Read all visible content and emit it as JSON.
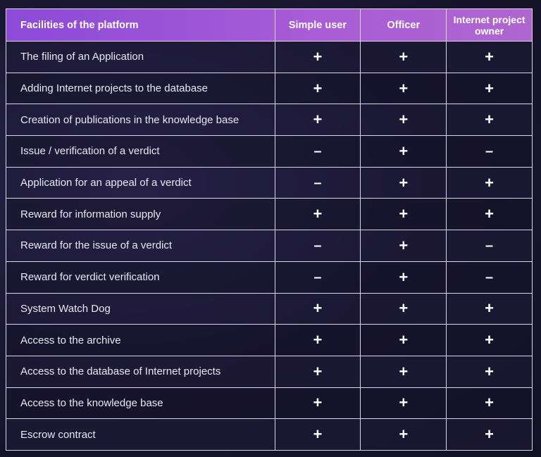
{
  "table": {
    "headers": [
      "Facilities of the platform",
      "Simple user",
      "Officer",
      "Internet project owner"
    ],
    "rows": [
      {
        "feature": "The filing of an Application",
        "values": [
          "+",
          "+",
          "+"
        ]
      },
      {
        "feature": "Adding Internet projects to the database",
        "values": [
          "+",
          "+",
          "+"
        ]
      },
      {
        "feature": "Creation of publications in the knowledge base",
        "values": [
          "+",
          "+",
          "+"
        ]
      },
      {
        "feature": "Issue / verification of a verdict",
        "values": [
          "–",
          "+",
          "–"
        ]
      },
      {
        "feature": "Application for an appeal of a verdict",
        "values": [
          "–",
          "+",
          "+"
        ]
      },
      {
        "feature": "Reward for information supply",
        "values": [
          "+",
          "+",
          "+"
        ]
      },
      {
        "feature": "Reward for the issue of a verdict",
        "values": [
          "–",
          "+",
          "–"
        ]
      },
      {
        "feature": "Reward for verdict verification",
        "values": [
          "–",
          "+",
          "–"
        ]
      },
      {
        "feature": "System Watch Dog",
        "values": [
          "+",
          "+",
          "+"
        ]
      },
      {
        "feature": "Access to the archive",
        "values": [
          "+",
          "+",
          "+"
        ]
      },
      {
        "feature": "Access to the database of Internet projects",
        "values": [
          "+",
          "+",
          "+"
        ]
      },
      {
        "feature": "Access to the knowledge base",
        "values": [
          "+",
          "+",
          "+"
        ]
      },
      {
        "feature": "Escrow contract",
        "values": [
          "+",
          "+",
          "+"
        ]
      }
    ]
  },
  "colors": {
    "header_gradient_start": "#8c4ad8",
    "header_gradient_end": "#b066d0",
    "background": "#1b1833",
    "grid_line": "#d9d6ea"
  }
}
